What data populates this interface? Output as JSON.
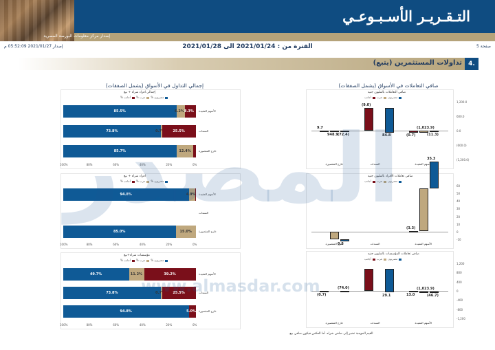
{
  "header": {
    "title": "التـقـريـر الأسـبـوعـي",
    "subtitle": "إصدار مركز معلومات البورصة المصرية"
  },
  "meta": {
    "page_label": "صفحة 5",
    "issue": "إصدار 2021/01/27 05:52:09 م",
    "period": "الفترة من : 2021/01/24 الى 2021/01/28"
  },
  "section": {
    "number": "4.",
    "title": "تداولات المستثمرين (يتبع)"
  },
  "columns": {
    "right_title": "صافي التعاملات في الأسواق (يشمل الصفقات)",
    "left_title": "إجمالي التداول في الأسواق (يشمل الصفقات)"
  },
  "colors": {
    "egyptian": "#0f5a96",
    "arab": "#bfa87e",
    "foreign": "#7a0f1a"
  },
  "footnote": "القيم الموجبة تشير إلى صافي شراء، أما العكس فيكون صافي بيع.",
  "watermark": {
    "logo": "المصدر",
    "url": "www.almasdar.com"
  },
  "chart_data": [
    {
      "type": "bar",
      "orientation": "horizontal-stacked",
      "title": "إجمالي افراد شراء + بيع",
      "legend": [
        "مصريون %",
        "عرب %",
        "أجانب %"
      ],
      "categories": [
        "الأسهم المقيدة",
        "السندات",
        "خارج المقصورة"
      ],
      "series": [
        {
          "name": "مصريون %",
          "values": [
            85.5,
            73.8,
            85.7
          ]
        },
        {
          "name": "عرب %",
          "values": [
            6.2,
            0.7,
            12.4
          ]
        },
        {
          "name": "أجانب %",
          "values": [
            8.3,
            25.5,
            1.9
          ]
        }
      ],
      "value_labels": [
        [
          "85.5%",
          "6.2%",
          "8.3%"
        ],
        [
          "73.8%",
          "0.7%",
          "25.5%"
        ],
        [
          "85.7%",
          "12.4%",
          ""
        ]
      ],
      "xticks": [
        "0%",
        "20%",
        "40%",
        "60%",
        "80%",
        "100%"
      ]
    },
    {
      "type": "bar",
      "orientation": "horizontal-stacked",
      "title": "افراد شراء + بيع",
      "legend": [
        "مصريون %",
        "عرب %",
        "أجانب %"
      ],
      "categories": [
        "الأسهم المقيدة",
        "السندات",
        "خارج المقصورة"
      ],
      "series": [
        {
          "name": "مصريون %",
          "values": [
            94.8,
            0,
            85.0
          ]
        },
        {
          "name": "عرب %",
          "values": [
            4.9,
            0,
            15.0
          ]
        },
        {
          "name": "أجانب %",
          "values": [
            0.3,
            0,
            0
          ]
        }
      ],
      "value_labels": [
        [
          "94.8%",
          "4.9%",
          ""
        ],
        [
          "",
          "",
          ""
        ],
        [
          "85.0%",
          "15.0%",
          ""
        ]
      ],
      "xticks": [
        "0%",
        "20%",
        "40%",
        "60%",
        "80%",
        "100%"
      ]
    },
    {
      "type": "bar",
      "orientation": "horizontal-stacked",
      "title": "مؤسسات شراء+بيع",
      "legend": [
        "مصريون %",
        "عرب %",
        "أجانب %"
      ],
      "categories": [
        "الأسهم المقيدة",
        "السندات",
        "خارج المقصورة"
      ],
      "series": [
        {
          "name": "مصريون %",
          "values": [
            49.7,
            73.8,
            94.8
          ]
        },
        {
          "name": "عرب %",
          "values": [
            11.2,
            0.7,
            0.2
          ]
        },
        {
          "name": "أجانب %",
          "values": [
            39.2,
            25.5,
            5.0
          ]
        }
      ],
      "value_labels": [
        [
          "49.7%",
          "11.2%",
          "39.2%"
        ],
        [
          "73.8%",
          "0.7%",
          "25.5%"
        ],
        [
          "94.8%",
          "",
          "5.0%"
        ]
      ],
      "xticks": [
        "0%",
        "20%",
        "40%",
        "60%",
        "80%",
        "100%"
      ]
    },
    {
      "type": "bar",
      "title": "صافي التعاملات بالمليون جنيه",
      "legend": [
        "مصريون",
        "عرب",
        "أجانب"
      ],
      "categories": [
        "الأسهم المقيدة",
        "السندات",
        "خارج المقصورة"
      ],
      "series": [
        {
          "name": "مصريون",
          "values": [
            -11.3,
            -1023.9,
            -0.7
          ]
        },
        {
          "name": "عرب",
          "values": [
            84.8,
            0,
            -9.0
          ]
        },
        {
          "name": "أجانب",
          "values": [
            -72.4,
            948.9,
            9.7
          ]
        }
      ],
      "value_labels": [
        [
          "(11.3)",
          "(1,023.9)",
          "(0.7)"
        ],
        [
          "84.8",
          "",
          "(9.0)"
        ],
        [
          "(72.4)",
          "948.9",
          "9.7"
        ]
      ],
      "ylim": [
        -1200,
        1200
      ],
      "yticks": [
        "1,200.0",
        "600.0",
        "0.0",
        "(600.0)",
        "(1,200.0)"
      ],
      "ylabel": "صافي التعاملات بالمليون جنيه"
    },
    {
      "type": "bar",
      "title": "صافي تعاملات الأفراد بالمليون جنيه",
      "legend": [
        "مصريون",
        "عرب",
        "أجانب"
      ],
      "categories": [
        "الأسهم المقيدة",
        "السندات",
        "خارج المقصورة"
      ],
      "series": [
        {
          "name": "مصريون",
          "values": [
            35.3,
            0,
            -3.3
          ]
        },
        {
          "name": "عرب",
          "values": [
            55.7,
            0,
            -9.8
          ]
        },
        {
          "name": "أجانب",
          "values": [
            0.5,
            0,
            0
          ]
        }
      ],
      "value_labels": [
        [
          "35.3",
          "",
          "(3.3)"
        ],
        [
          "55.7",
          "",
          "(9.8)"
        ],
        [
          "0.5",
          "",
          ""
        ]
      ],
      "ylim": [
        -10,
        60
      ],
      "yticks": [
        "60",
        "50",
        "40",
        "30",
        "20",
        "10",
        "0",
        "-10"
      ]
    },
    {
      "type": "bar",
      "title": "صافي تعاملات المؤسسات بالمليون جنيه",
      "legend": [
        "مصريون",
        "عرب",
        "أجانب"
      ],
      "categories": [
        "الأسهم المقيدة",
        "السندات",
        "خارج المقصورة"
      ],
      "series": [
        {
          "name": "مصريون",
          "values": [
            -46.7,
            -1023.9,
            13.0
          ]
        },
        {
          "name": "عرب",
          "values": [
            29.1,
            0,
            0
          ]
        },
        {
          "name": "أجانب",
          "values": [
            -74.0,
            948.9,
            -0.7
          ]
        }
      ],
      "value_labels": [
        [
          "(46.7)",
          "(1,023.9)",
          "13.0"
        ],
        [
          "29.1",
          "",
          ""
        ],
        [
          "(74.0)",
          "948.9",
          "(0.7)"
        ]
      ],
      "ylim": [
        -1200,
        1200
      ],
      "yticks": [
        "1,200",
        "800",
        "400",
        "0",
        "-400",
        "-800",
        "-1,200"
      ]
    }
  ]
}
